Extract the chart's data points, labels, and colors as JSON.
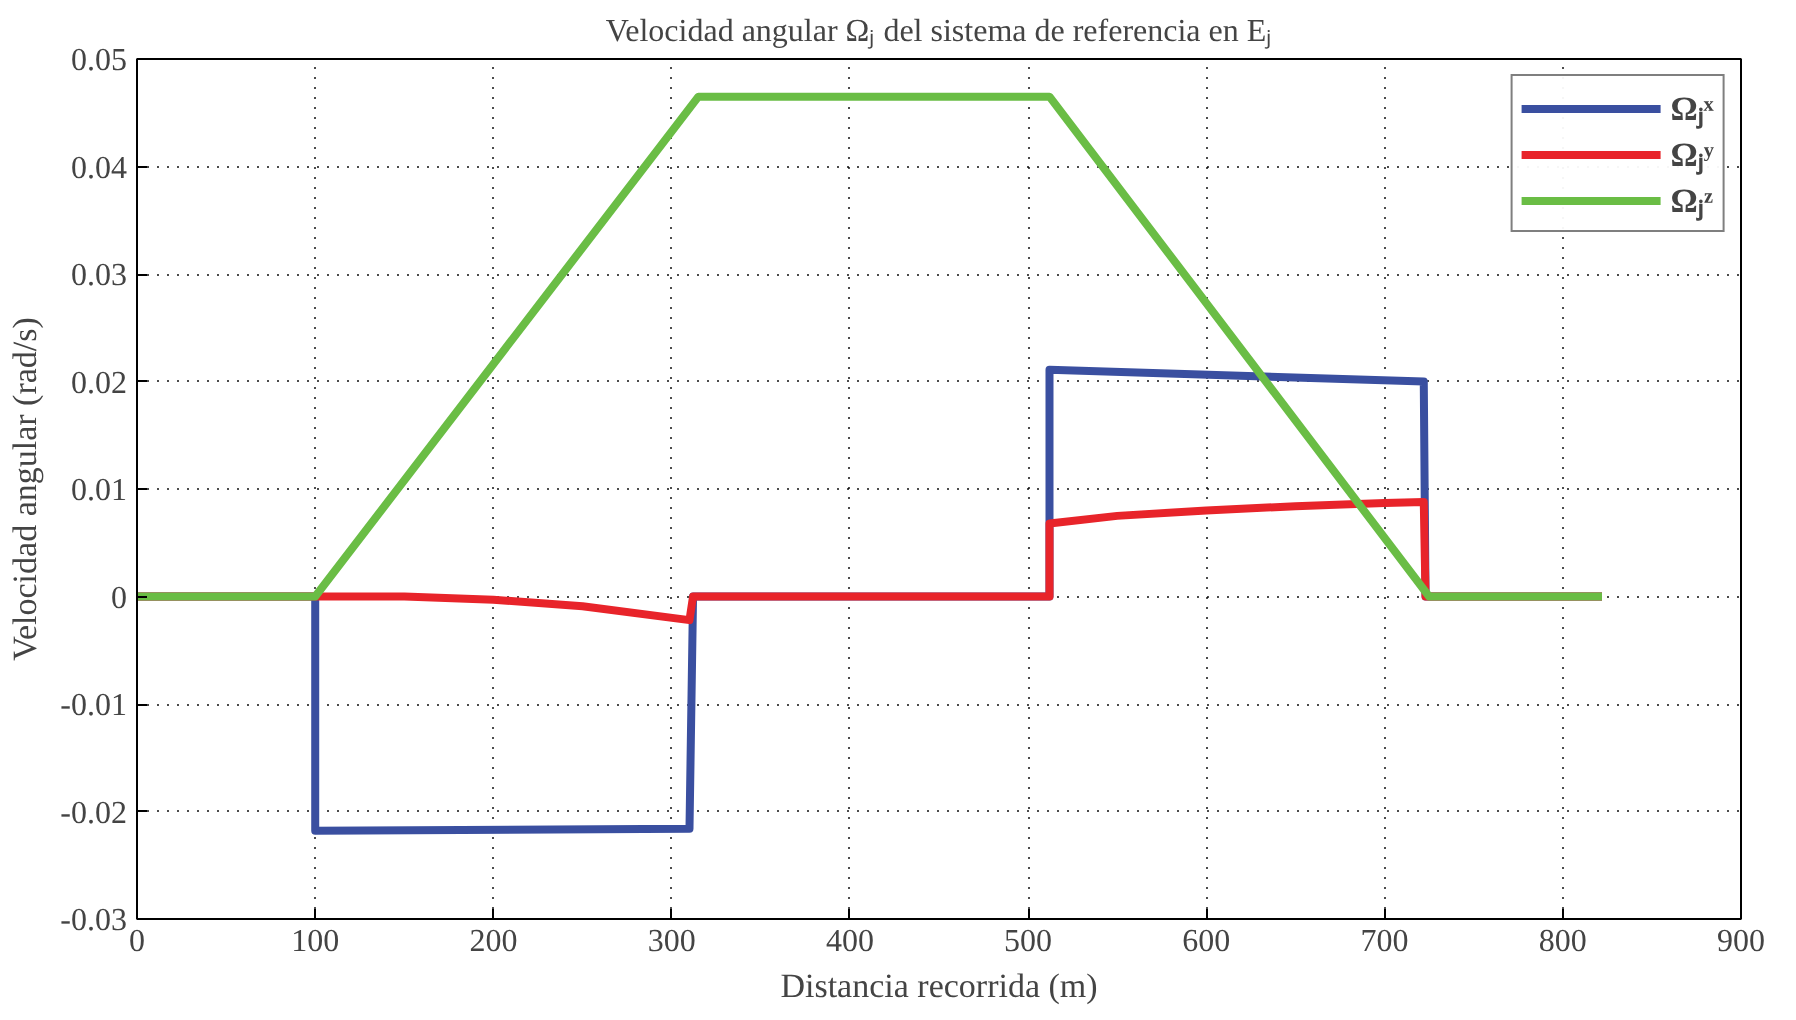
{
  "chart_data": {
    "type": "line",
    "title": "Velocidad angular Ωⱼ del sistema de referencia en Eⱼ",
    "xlabel": "Distancia recorrida (m)",
    "ylabel": "Velocidad angular (rad/s)",
    "xlim": [
      0,
      900
    ],
    "ylim": [
      -0.03,
      0.05
    ],
    "xticks": [
      0,
      100,
      200,
      300,
      400,
      500,
      600,
      700,
      800,
      900
    ],
    "yticks": [
      -0.03,
      -0.02,
      -0.01,
      0,
      0.01,
      0.02,
      0.03,
      0.04,
      0.05
    ],
    "grid": true,
    "legend": "top right",
    "line_style": "solid",
    "marker": "none",
    "series": [
      {
        "name": "Ωⱼˣ",
        "color": "#3a4fa0",
        "x": [
          0,
          100,
          100,
          310,
          312,
          512,
          512,
          722,
          723,
          822
        ],
        "values": [
          0,
          0,
          -0.0218,
          -0.0216,
          0,
          0,
          0.0211,
          0.02,
          0,
          0
        ]
      },
      {
        "name": "Ωⱼʸ",
        "color": "#e8242a",
        "x": [
          0,
          100,
          150,
          200,
          250,
          310,
          312,
          512,
          512,
          550,
          600,
          650,
          700,
          722,
          723,
          822
        ],
        "values": [
          0,
          0,
          0,
          -0.0003,
          -0.0009,
          -0.0022,
          0,
          0,
          0.0068,
          0.0075,
          0.008,
          0.0084,
          0.0087,
          0.0088,
          0,
          0
        ]
      },
      {
        "name": "Ωⱼᶻ",
        "color": "#6abd45",
        "x": [
          0,
          100,
          315,
          512,
          725,
          822
        ],
        "values": [
          0,
          0,
          0.0465,
          0.0465,
          0,
          0
        ]
      }
    ]
  }
}
